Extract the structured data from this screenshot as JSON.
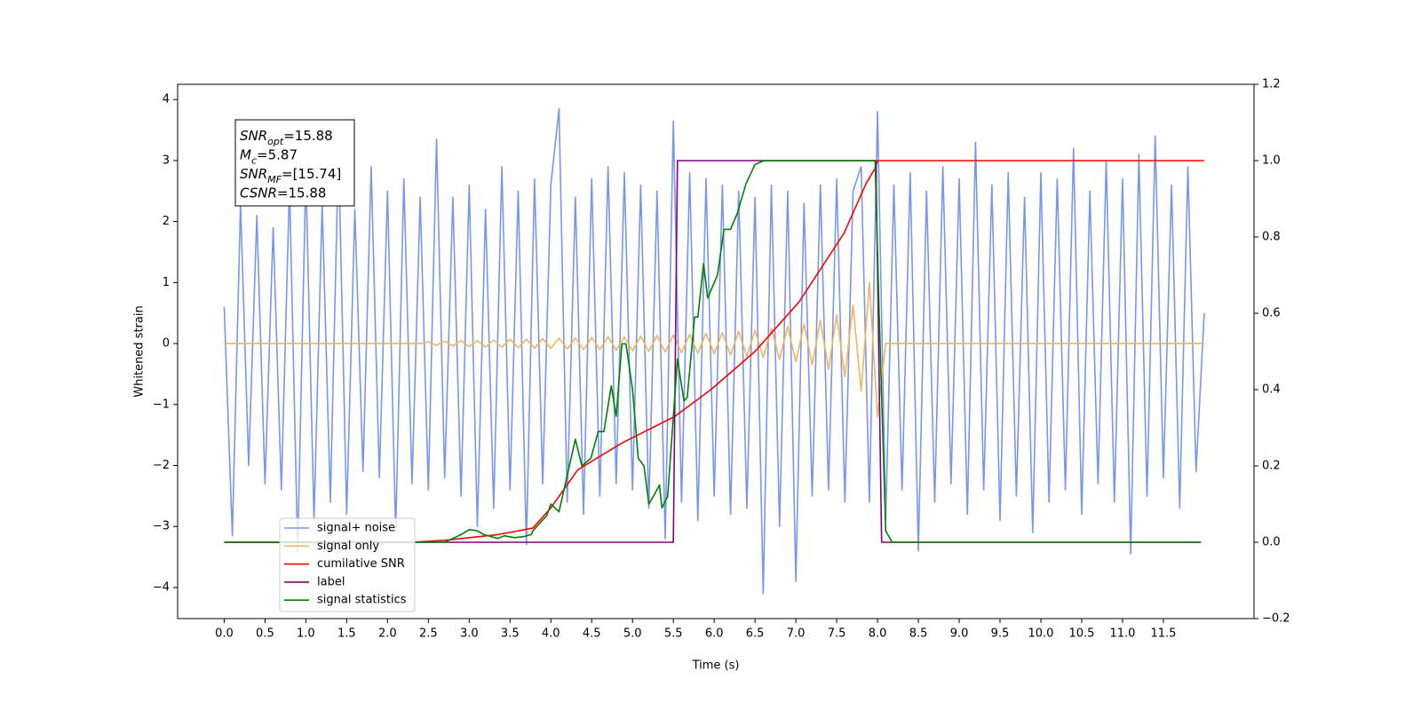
{
  "chart_data": {
    "type": "line",
    "xlabel": "Time (s)",
    "ylabel": "Whitened strain",
    "xlim": [
      -0.57,
      12.61
    ],
    "ylim": [
      -4.51,
      4.25
    ],
    "y2lim": [
      -0.2,
      1.2
    ],
    "xticks": [
      {
        "value": 0,
        "label": "0.0"
      },
      0.5,
      {
        "value": 1,
        "label": "1.0"
      },
      1.5,
      {
        "value": 2,
        "label": "2.0"
      },
      2.5,
      {
        "value": 3,
        "label": "3.0"
      },
      3.5,
      {
        "value": 4,
        "label": "4.0"
      },
      4.5,
      {
        "value": 5,
        "label": "5.0"
      },
      5.5,
      {
        "value": 6,
        "label": "6.0"
      },
      6.5,
      {
        "value": 7,
        "label": "7.0"
      },
      7.5,
      {
        "value": 8,
        "label": "8.0"
      },
      8.5,
      {
        "value": 9,
        "label": "9.0"
      },
      9.5,
      {
        "value": 10,
        "label": "10.0"
      },
      10.5,
      {
        "value": 11,
        "label": "11.0"
      },
      11.5
    ],
    "yticks": [
      {
        "value": -4,
        "label": "−4"
      },
      {
        "value": -3,
        "label": "−3"
      },
      {
        "value": -2,
        "label": "−2"
      },
      {
        "value": -1,
        "label": "−1"
      },
      0,
      1,
      2,
      3,
      4
    ],
    "y2ticks": [
      {
        "value": -0.2,
        "label": "−0.2"
      },
      {
        "value": 0,
        "label": "0.0"
      },
      0.2,
      0.4,
      0.6,
      0.8,
      {
        "value": 1,
        "label": "1.0"
      },
      1.2
    ],
    "legend": "lower left",
    "annotations": [
      {
        "symbol": "SNR",
        "sub": "opt",
        "value": "=15.88"
      },
      {
        "symbol": "M",
        "sub": "c",
        "value": "=5.87"
      },
      {
        "symbol": "SNR",
        "sub": "MF",
        "value": "=[15.74]"
      },
      {
        "symbol": "CSNR",
        "value": "=15.88"
      }
    ],
    "x": [
      0.0,
      0.1,
      0.2,
      0.3,
      0.4,
      0.5,
      0.6,
      0.7,
      0.8,
      0.9,
      1.0,
      1.1,
      1.2,
      1.3,
      1.4,
      1.5,
      1.6,
      1.7,
      1.8,
      1.9,
      2.0,
      2.1,
      2.2,
      2.3,
      2.4,
      2.5,
      2.6,
      2.7,
      2.8,
      2.9,
      3.0,
      3.1,
      3.2,
      3.3,
      3.4,
      3.5,
      3.6,
      3.7,
      3.8,
      3.9,
      4.0,
      4.1,
      4.2,
      4.3,
      4.4,
      4.5,
      4.6,
      4.7,
      4.8,
      4.9,
      5.0,
      5.1,
      5.2,
      5.3,
      5.4,
      5.5,
      5.6,
      5.7,
      5.8,
      5.9,
      6.0,
      6.1,
      6.2,
      6.3,
      6.4,
      6.5,
      6.6,
      6.7,
      6.8,
      6.9,
      7.0,
      7.1,
      7.2,
      7.3,
      7.4,
      7.5,
      7.6,
      7.7,
      7.8,
      7.9,
      8.0,
      8.1,
      8.2,
      8.3,
      8.4,
      8.5,
      8.6,
      8.7,
      8.8,
      8.9,
      9.0,
      9.1,
      9.2,
      9.3,
      9.4,
      9.5,
      9.6,
      9.7,
      9.8,
      9.9,
      10.0,
      10.1,
      10.2,
      10.3,
      10.4,
      10.5,
      10.6,
      10.7,
      10.8,
      10.9,
      11.0,
      11.1,
      11.2,
      11.3,
      11.4,
      11.5,
      11.6,
      11.7,
      11.8,
      11.9,
      12.0
    ],
    "series": [
      {
        "name": "signal+ noise",
        "color": "#7a96e9",
        "values": [
          0.6,
          -3.15,
          2.3,
          -2.0,
          2.1,
          -2.3,
          1.9,
          -2.4,
          2.6,
          -3.4,
          2.8,
          -2.9,
          2.3,
          -2.6,
          3.2,
          -2.8,
          2.2,
          -2.1,
          2.9,
          -2.2,
          2.5,
          -3.1,
          2.7,
          -2.3,
          2.4,
          -2.4,
          3.35,
          -2.2,
          2.4,
          -2.5,
          2.6,
          -3.0,
          2.2,
          -2.7,
          2.9,
          -2.4,
          2.5,
          -3.3,
          2.7,
          -2.3,
          2.6,
          3.85,
          -2.6,
          2.4,
          -2.8,
          2.7,
          -2.5,
          2.9,
          -2.3,
          2.8,
          -2.4,
          2.6,
          -2.7,
          2.5,
          -3.2,
          3.65,
          -2.6,
          2.8,
          -2.9,
          2.7,
          -2.5,
          2.6,
          -2.8,
          2.5,
          -2.7,
          2.4,
          -4.1,
          2.6,
          -3.0,
          2.5,
          -3.9,
          2.3,
          -2.5,
          2.6,
          -2.4,
          2.7,
          -2.6,
          2.5,
          2.9,
          -2.6,
          3.8,
          -2.9,
          2.6,
          -2.4,
          2.8,
          -3.4,
          2.5,
          -2.6,
          2.9,
          -2.3,
          2.7,
          -2.8,
          3.3,
          -2.4,
          2.6,
          -2.9,
          2.8,
          -2.5,
          2.4,
          -3.1,
          2.8,
          -2.6,
          2.7,
          -2.4,
          3.2,
          -2.8,
          2.5,
          -2.3,
          3.0,
          -2.6,
          2.7,
          -3.45,
          3.1,
          -2.5,
          3.4,
          -2.2,
          2.6,
          -2.7,
          2.9,
          -2.1,
          0.5
        ]
      },
      {
        "name": "signal only",
        "color": "#f2b45c",
        "values": [
          0,
          0,
          0,
          0,
          0,
          0,
          0,
          0,
          0,
          0,
          0,
          0,
          0,
          0,
          0,
          0,
          0,
          0,
          0,
          0,
          0,
          0,
          0,
          0,
          0,
          0.03,
          -0.03,
          0.04,
          -0.04,
          0.05,
          -0.05,
          0.05,
          -0.06,
          0.06,
          -0.06,
          0.07,
          -0.07,
          0.07,
          -0.08,
          0.08,
          -0.08,
          0.09,
          -0.09,
          0.09,
          -0.1,
          0.1,
          -0.1,
          0.11,
          -0.11,
          0.11,
          -0.12,
          0.12,
          -0.13,
          0.13,
          -0.14,
          0.14,
          -0.15,
          0.15,
          -0.16,
          0.17,
          -0.17,
          0.18,
          -0.19,
          0.2,
          -0.21,
          0.22,
          -0.23,
          0.25,
          -0.26,
          0.28,
          -0.3,
          0.32,
          -0.35,
          0.38,
          -0.42,
          0.47,
          -0.54,
          0.63,
          -0.78,
          1.0,
          -1.2,
          0,
          0,
          0,
          0,
          0,
          0,
          0,
          0,
          0,
          0,
          0,
          0,
          0,
          0,
          0,
          0,
          0,
          0,
          0,
          0,
          0,
          0,
          0,
          0,
          0,
          0,
          0,
          0,
          0,
          0,
          0,
          0,
          0,
          0,
          0,
          0,
          0,
          0,
          0,
          0
        ]
      },
      {
        "name": "cumilative SNR",
        "color": "#ff0000",
        "axis": "y2",
        "x": [
          0,
          2.3,
          2.7,
          3.0,
          3.35,
          3.78,
          4.0,
          4.33,
          4.87,
          5.52,
          5.96,
          6.5,
          7.04,
          7.59,
          7.86,
          7.97,
          8.0,
          12.0
        ],
        "values": [
          0,
          0,
          0.005,
          0.012,
          0.02,
          0.037,
          0.09,
          0.19,
          0.26,
          0.33,
          0.4,
          0.5,
          0.63,
          0.81,
          0.94,
          0.98,
          1.0,
          1.0
        ]
      },
      {
        "name": "label",
        "color": "#800080",
        "axis": "y2",
        "x": [
          0,
          5.5,
          5.55,
          7.98,
          8.05,
          11.96
        ],
        "values": [
          0,
          0,
          1,
          1,
          0,
          0
        ]
      },
      {
        "name": "signal statistics",
        "color": "#008000",
        "axis": "y2",
        "x": [
          0,
          2.7,
          2.9,
          3.0,
          3.1,
          3.18,
          3.35,
          3.43,
          3.56,
          3.67,
          3.76,
          3.78,
          3.95,
          4.0,
          4.1,
          4.3,
          4.38,
          4.49,
          4.58,
          4.65,
          4.74,
          4.8,
          4.87,
          4.92,
          5.0,
          5.07,
          5.14,
          5.2,
          5.28,
          5.33,
          5.36,
          5.43,
          5.55,
          5.63,
          5.67,
          5.76,
          5.8,
          5.87,
          5.92,
          6.04,
          6.12,
          6.2,
          6.28,
          6.39,
          6.5,
          6.61,
          7.97,
          8.02,
          8.1,
          8.18,
          11.96
        ],
        "values": [
          0,
          0,
          0.02,
          0.033,
          0.03,
          0.02,
          0.01,
          0.017,
          0.012,
          0.015,
          0.02,
          0.03,
          0.07,
          0.1,
          0.08,
          0.27,
          0.2,
          0.22,
          0.29,
          0.29,
          0.41,
          0.33,
          0.52,
          0.52,
          0.4,
          0.22,
          0.2,
          0.1,
          0.13,
          0.15,
          0.09,
          0.12,
          0.48,
          0.37,
          0.38,
          0.59,
          0.59,
          0.73,
          0.64,
          0.7,
          0.82,
          0.82,
          0.86,
          0.94,
          0.99,
          1.0,
          1.0,
          0.6,
          0.03,
          0,
          0
        ]
      }
    ]
  }
}
